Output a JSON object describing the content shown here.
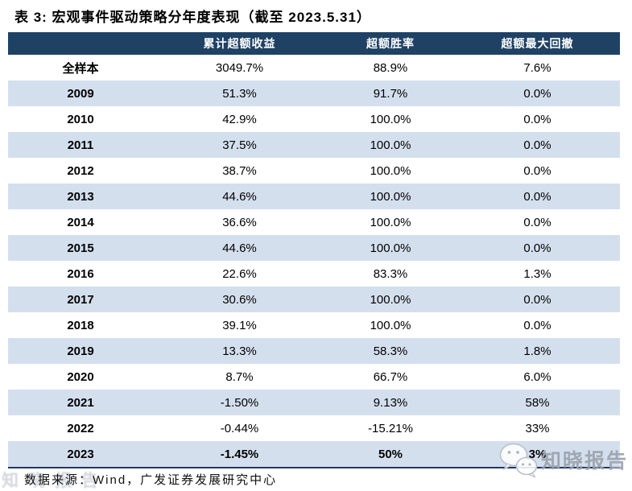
{
  "title": "表 3: 宏观事件驱动策略分年度表现（截至 2023.5.31）",
  "table": {
    "header": [
      "",
      "累计超额收益",
      "超额胜率",
      "超额最大回撤"
    ],
    "rows": [
      {
        "label": "全样本",
        "values": [
          "3049.7%",
          "88.9%",
          "7.6%"
        ],
        "emphasis": false
      },
      {
        "label": "2009",
        "values": [
          "51.3%",
          "91.7%",
          "0.0%"
        ],
        "emphasis": false
      },
      {
        "label": "2010",
        "values": [
          "42.9%",
          "100.0%",
          "0.0%"
        ],
        "emphasis": false
      },
      {
        "label": "2011",
        "values": [
          "37.5%",
          "100.0%",
          "0.0%"
        ],
        "emphasis": false
      },
      {
        "label": "2012",
        "values": [
          "38.7%",
          "100.0%",
          "0.0%"
        ],
        "emphasis": false
      },
      {
        "label": "2013",
        "values": [
          "44.6%",
          "100.0%",
          "0.0%"
        ],
        "emphasis": false
      },
      {
        "label": "2014",
        "values": [
          "36.6%",
          "100.0%",
          "0.0%"
        ],
        "emphasis": false
      },
      {
        "label": "2015",
        "values": [
          "44.6%",
          "100.0%",
          "0.0%"
        ],
        "emphasis": false
      },
      {
        "label": "2016",
        "values": [
          "22.6%",
          "83.3%",
          "1.3%"
        ],
        "emphasis": false
      },
      {
        "label": "2017",
        "values": [
          "30.6%",
          "100.0%",
          "0.0%"
        ],
        "emphasis": false
      },
      {
        "label": "2018",
        "values": [
          "39.1%",
          "100.0%",
          "0.0%"
        ],
        "emphasis": false
      },
      {
        "label": "2019",
        "values": [
          "13.3%",
          "58.3%",
          "1.8%"
        ],
        "emphasis": false
      },
      {
        "label": "2020",
        "values": [
          "8.7%",
          "66.7%",
          "6.0%"
        ],
        "emphasis": false
      },
      {
        "label": "2021",
        "values": [
          "-1.50%",
          "9.13%",
          "58%"
        ],
        "emphasis": false
      },
      {
        "label": "2022",
        "values": [
          "-0.44%",
          "-15.21%",
          "33%"
        ],
        "emphasis": false
      },
      {
        "label": "2023",
        "values": [
          "-1.45%",
          "50%",
          "3%"
        ],
        "emphasis": true
      }
    ]
  },
  "chart_data": {
    "type": "table",
    "title": "宏观事件驱动策略分年度表现（截至 2023.5.31）",
    "columns": [
      "累计超额收益",
      "超额胜率",
      "超额最大回撤"
    ],
    "row_labels": [
      "全样本",
      "2009",
      "2010",
      "2011",
      "2012",
      "2013",
      "2014",
      "2015",
      "2016",
      "2017",
      "2018",
      "2019",
      "2020",
      "2021",
      "2022",
      "2023"
    ],
    "cells": [
      [
        "3049.7%",
        "88.9%",
        "7.6%"
      ],
      [
        "51.3%",
        "91.7%",
        "0.0%"
      ],
      [
        "42.9%",
        "100.0%",
        "0.0%"
      ],
      [
        "37.5%",
        "100.0%",
        "0.0%"
      ],
      [
        "38.7%",
        "100.0%",
        "0.0%"
      ],
      [
        "44.6%",
        "100.0%",
        "0.0%"
      ],
      [
        "36.6%",
        "100.0%",
        "0.0%"
      ],
      [
        "44.6%",
        "100.0%",
        "0.0%"
      ],
      [
        "22.6%",
        "83.3%",
        "1.3%"
      ],
      [
        "30.6%",
        "100.0%",
        "0.0%"
      ],
      [
        "39.1%",
        "100.0%",
        "0.0%"
      ],
      [
        "13.3%",
        "58.3%",
        "1.8%"
      ],
      [
        "8.7%",
        "66.7%",
        "6.0%"
      ],
      [
        "-1.50%",
        "9.13%",
        "58%"
      ],
      [
        "-0.44%",
        "-15.21%",
        "33%"
      ],
      [
        "-1.45%",
        "50%",
        "3%"
      ]
    ]
  },
  "footer": {
    "source_text": "数据来源：Wind，广发证券发展研究中心"
  },
  "watermarks": {
    "brand": "知晓报告",
    "faint_text": "知晓报告",
    "icon": "wechat-bubbles-icon"
  },
  "colors": {
    "header_bg": "#1F4164",
    "stripe_bg": "#D4DFEE",
    "bottom_border": "#1F3864",
    "watermark_gray": "#99A1AC"
  }
}
